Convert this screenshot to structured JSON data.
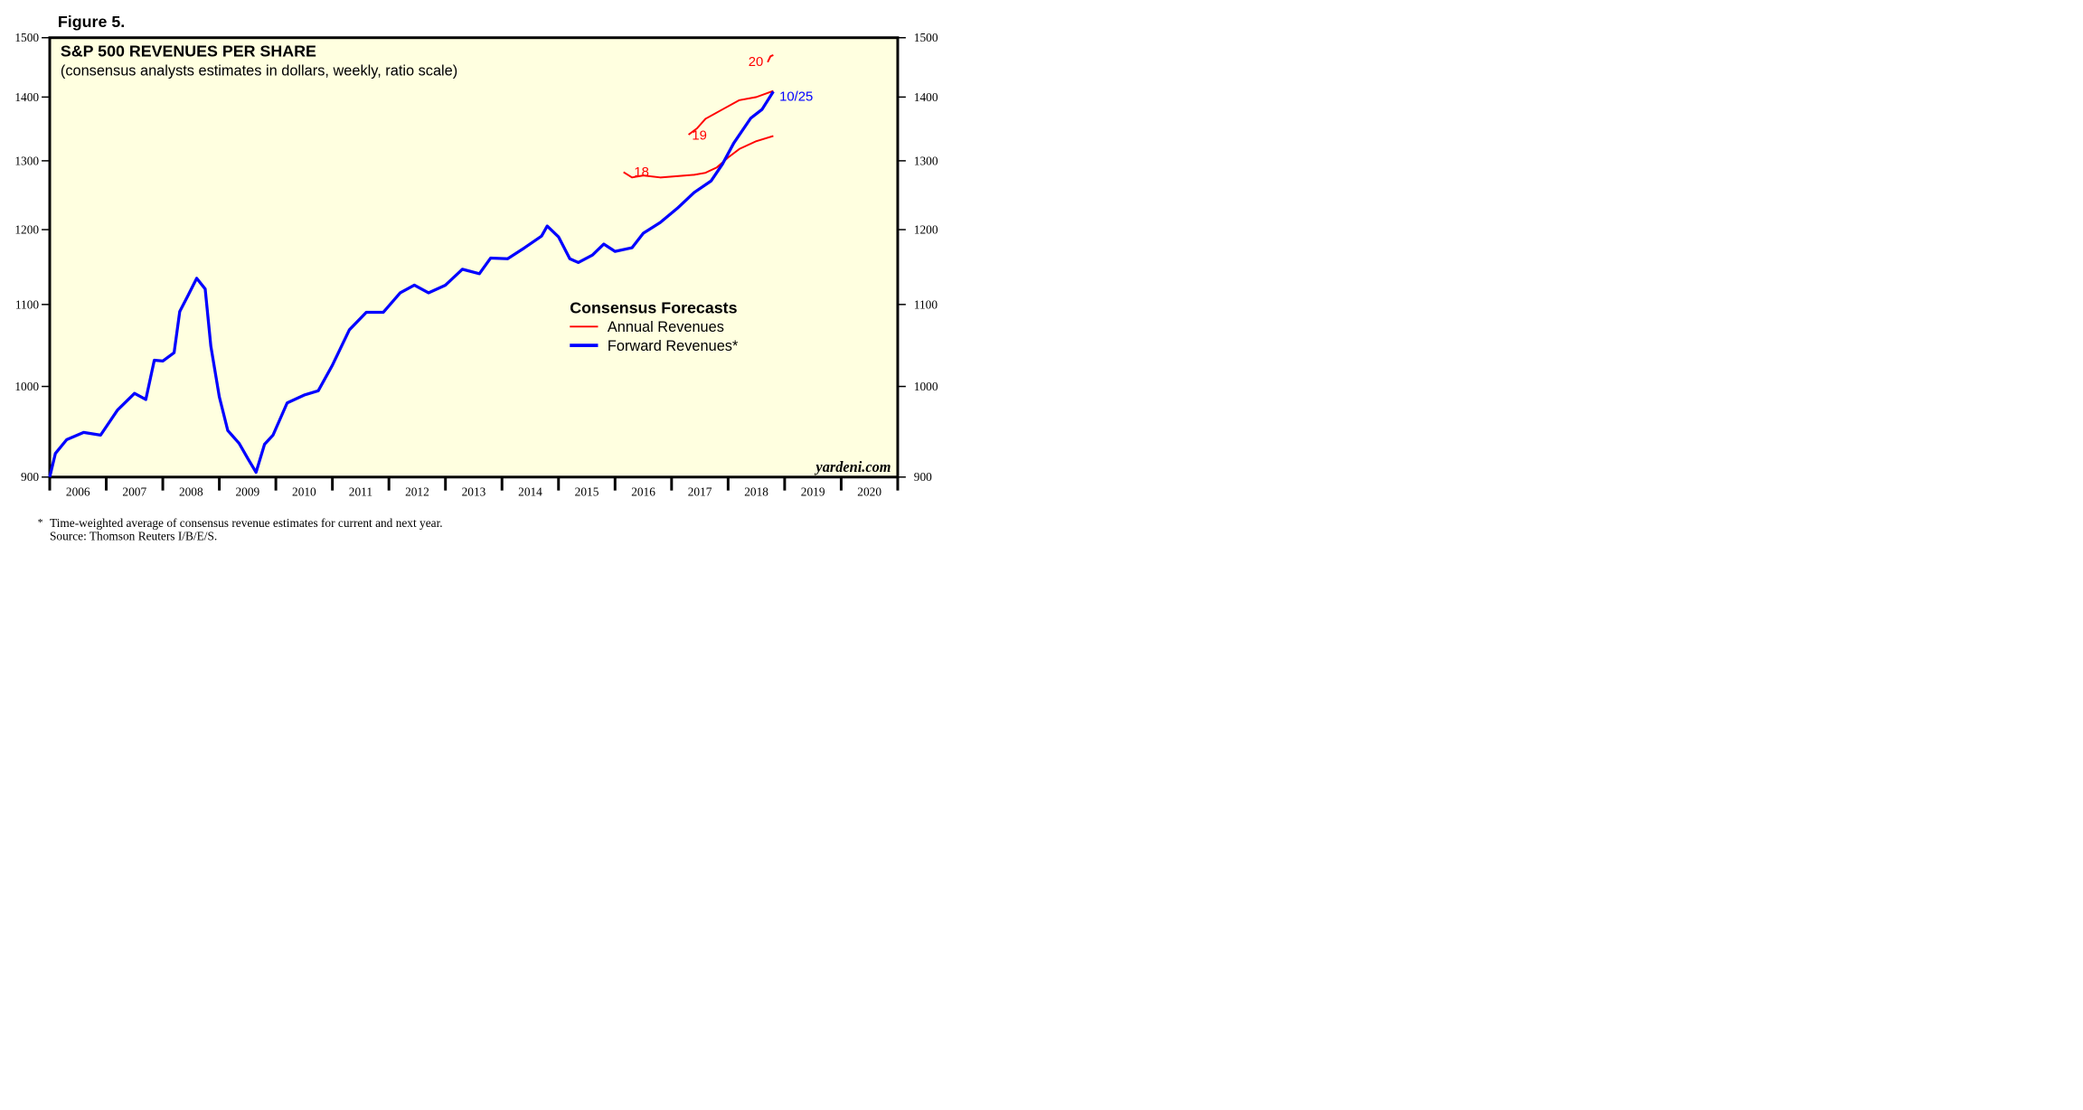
{
  "chart_data": {
    "type": "line",
    "figure_label": "Figure 5.",
    "title": "S&P 500 REVENUES PER SHARE",
    "subtitle": "(consensus analysts estimates in dollars, weekly, ratio scale)",
    "legend_title": "Consensus Forecasts",
    "log_scale": true,
    "xlim": [
      2006,
      2021
    ],
    "xticks": [
      {
        "value": 2006,
        "label": "2006"
      },
      {
        "value": 2007,
        "label": "2007"
      },
      {
        "value": 2008,
        "label": "2008"
      },
      {
        "value": 2009,
        "label": "2009"
      },
      {
        "value": 2010,
        "label": "2010"
      },
      {
        "value": 2011,
        "label": "2011"
      },
      {
        "value": 2012,
        "label": "2012"
      },
      {
        "value": 2013,
        "label": "2013"
      },
      {
        "value": 2014,
        "label": "2014"
      },
      {
        "value": 2015,
        "label": "2015"
      },
      {
        "value": 2016,
        "label": "2016"
      },
      {
        "value": 2017,
        "label": "2017"
      },
      {
        "value": 2018,
        "label": "2018"
      },
      {
        "value": 2019,
        "label": "2019"
      },
      {
        "value": 2020,
        "label": "2020"
      }
    ],
    "ylim": [
      900,
      1500
    ],
    "yticks": [
      900,
      1000,
      1100,
      1200,
      1300,
      1400,
      1500
    ],
    "series": [
      {
        "name": "Annual Revenues",
        "color": "#ff0000",
        "lines": [
          {
            "label": "18",
            "x": [
              2016.15,
              2016.3,
              2016.5,
              2016.8,
              2017.1,
              2017.4,
              2017.6,
              2017.8,
              2018.0,
              2018.2,
              2018.5,
              2018.8
            ],
            "values": [
              1283,
              1275,
              1278,
              1275,
              1277,
              1279,
              1282,
              1290,
              1305,
              1318,
              1330,
              1338
            ]
          },
          {
            "label": "19",
            "x": [
              2017.3,
              2017.45,
              2017.6,
              2017.9,
              2018.2,
              2018.5,
              2018.8
            ],
            "values": [
              1340,
              1350,
              1365,
              1380,
              1395,
              1400,
              1410
            ]
          },
          {
            "label": "20",
            "x": [
              2018.7,
              2018.75,
              2018.8
            ],
            "values": [
              1458,
              1468,
              1470
            ]
          }
        ]
      },
      {
        "name": "Forward Revenues*",
        "color": "#0000ff",
        "annotation": "10/25",
        "x": [
          2006.0,
          2006.1,
          2006.3,
          2006.6,
          2006.9,
          2007.2,
          2007.5,
          2007.7,
          2007.85,
          2008.0,
          2008.2,
          2008.3,
          2008.45,
          2008.6,
          2008.75,
          2008.85,
          2009.0,
          2009.15,
          2009.35,
          2009.5,
          2009.65,
          2009.8,
          2009.95,
          2010.2,
          2010.5,
          2010.75,
          2011.0,
          2011.3,
          2011.6,
          2011.9,
          2012.2,
          2012.45,
          2012.7,
          2013.0,
          2013.3,
          2013.6,
          2013.8,
          2014.1,
          2014.4,
          2014.7,
          2014.8,
          2015.0,
          2015.2,
          2015.35,
          2015.6,
          2015.8,
          2016.0,
          2016.3,
          2016.5,
          2016.8,
          2017.1,
          2017.4,
          2017.7,
          2017.9,
          2018.1,
          2018.4,
          2018.6,
          2018.8
        ],
        "values": [
          900,
          925,
          940,
          948,
          945,
          973,
          992,
          985,
          1031,
          1030,
          1040,
          1091,
          1112,
          1134,
          1120,
          1048,
          988,
          950,
          936,
          920,
          905,
          935,
          945,
          981,
          990,
          995,
          1025,
          1068,
          1090,
          1090,
          1115,
          1125,
          1115,
          1125,
          1146,
          1140,
          1161,
          1160,
          1175,
          1191,
          1205,
          1190,
          1160,
          1155,
          1165,
          1180,
          1170,
          1175,
          1195,
          1210,
          1230,
          1253,
          1270,
          1295,
          1327,
          1366,
          1380,
          1409
        ]
      }
    ],
    "watermark": "yardeni.com",
    "footnote_marker": "*",
    "footnotes": [
      "Time-weighted average of consensus revenue estimates for current and next year.",
      "Source: Thomson Reuters I/B/E/S."
    ]
  }
}
